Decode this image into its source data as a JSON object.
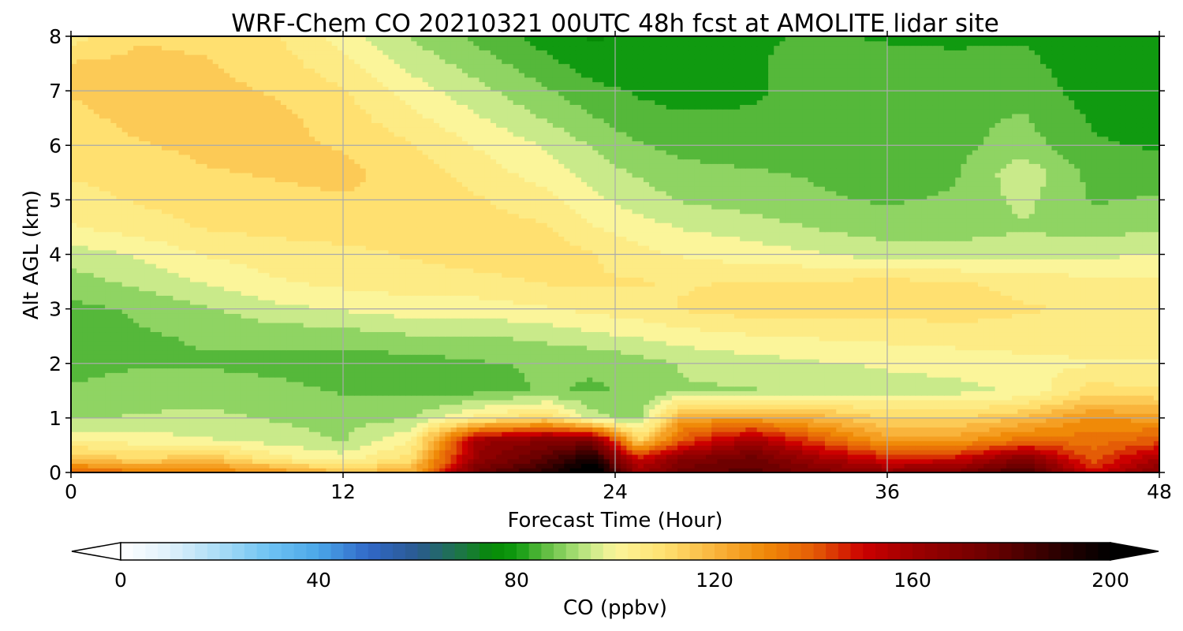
{
  "chart_data": {
    "type": "heatmap",
    "title": "WRF-Chem CO  20210321 00UTC 48h fcst at AMOLITE lidar site",
    "xlabel": "Forecast Time (Hour)",
    "ylabel": "Alt AGL (km)",
    "xlim": [
      0,
      48
    ],
    "ylim": [
      0,
      8
    ],
    "x_ticks": [
      "0",
      "12",
      "24",
      "36",
      "48"
    ],
    "y_ticks": [
      "0",
      "1",
      "2",
      "3",
      "4",
      "5",
      "6",
      "7",
      "8"
    ],
    "grid": true,
    "colorbar": {
      "label": "CO  (ppbv)",
      "range": [
        0,
        200
      ],
      "ticks": [
        "0",
        "40",
        "80",
        "120",
        "160",
        "200"
      ],
      "extend": "both",
      "placement": "bottom"
    },
    "hours": [
      0,
      3,
      6,
      9,
      12,
      15,
      18,
      21,
      23,
      25,
      27,
      30,
      33,
      36,
      39,
      42,
      45,
      48
    ],
    "altitudes_km": [
      0,
      0.25,
      0.6,
      1.0,
      1.5,
      2.0,
      2.5,
      3.0,
      3.5,
      4.0,
      4.5,
      5.0,
      5.5,
      6.0,
      6.5,
      7.0,
      7.5,
      8.0
    ],
    "values_ppbv": [
      [
        140,
        135,
        132,
        128,
        118,
        122,
        175,
        190,
        210,
        160,
        175,
        180,
        170,
        165,
        170,
        185,
        150,
        168
      ],
      [
        118,
        112,
        118,
        105,
        100,
        110,
        165,
        180,
        195,
        150,
        168,
        175,
        160,
        148,
        150,
        170,
        140,
        160
      ],
      [
        102,
        100,
        98,
        95,
        92,
        102,
        160,
        168,
        170,
        112,
        140,
        160,
        140,
        125,
        125,
        135,
        135,
        140
      ],
      [
        92,
        93,
        94,
        92,
        91,
        92,
        105,
        112,
        95,
        90,
        125,
        125,
        120,
        112,
        112,
        118,
        128,
        125
      ],
      [
        88,
        90,
        90,
        89,
        87,
        86,
        86,
        88,
        87,
        88,
        92,
        92,
        95,
        96,
        96,
        98,
        110,
        108
      ],
      [
        86,
        87,
        87,
        86,
        84,
        85,
        87,
        88,
        88,
        90,
        93,
        95,
        97,
        98,
        99,
        101,
        102,
        102
      ],
      [
        86,
        87,
        88,
        89,
        90,
        92,
        92,
        94,
        96,
        98,
        100,
        102,
        103,
        104,
        105,
        105,
        105,
        104
      ],
      [
        86,
        88,
        92,
        96,
        98,
        100,
        100,
        102,
        104,
        105,
        108,
        110,
        110,
        109,
        110,
        108,
        107,
        106
      ],
      [
        90,
        94,
        98,
        102,
        104,
        105,
        106,
        108,
        108,
        108,
        107,
        108,
        108,
        109,
        108,
        106,
        104,
        104
      ],
      [
        95,
        98,
        103,
        105,
        106,
        108,
        110,
        110,
        108,
        104,
        102,
        100,
        98,
        95,
        95,
        96,
        96,
        98
      ],
      [
        102,
        105,
        108,
        109,
        110,
        110,
        110,
        108,
        103,
        100,
        97,
        95,
        92,
        90,
        90,
        92,
        90,
        92
      ],
      [
        106,
        108,
        110,
        111,
        112,
        112,
        108,
        104,
        99,
        95,
        92,
        90,
        88,
        87,
        88,
        94,
        87,
        88
      ],
      [
        108,
        109,
        112,
        113,
        114,
        110,
        105,
        100,
        95,
        92,
        89,
        88,
        87,
        86,
        87,
        96,
        86,
        85
      ],
      [
        110,
        112,
        114,
        114,
        112,
        108,
        102,
        97,
        92,
        88,
        86,
        85,
        85,
        84,
        86,
        90,
        83,
        82
      ],
      [
        111,
        114,
        115,
        114,
        110,
        104,
        98,
        92,
        88,
        84,
        83,
        83,
        84,
        84,
        86,
        88,
        82,
        81
      ],
      [
        113,
        115,
        114,
        112,
        108,
        100,
        94,
        88,
        84,
        82,
        81,
        82,
        84,
        85,
        85,
        86,
        80,
        80
      ],
      [
        113,
        114,
        113,
        110,
        104,
        96,
        90,
        84,
        80,
        79,
        80,
        82,
        84,
        84,
        83,
        84,
        79,
        80
      ],
      [
        105,
        112,
        111,
        108,
        100,
        92,
        86,
        80,
        77,
        78,
        80,
        82,
        83,
        82,
        82,
        82,
        78,
        79
      ]
    ]
  }
}
